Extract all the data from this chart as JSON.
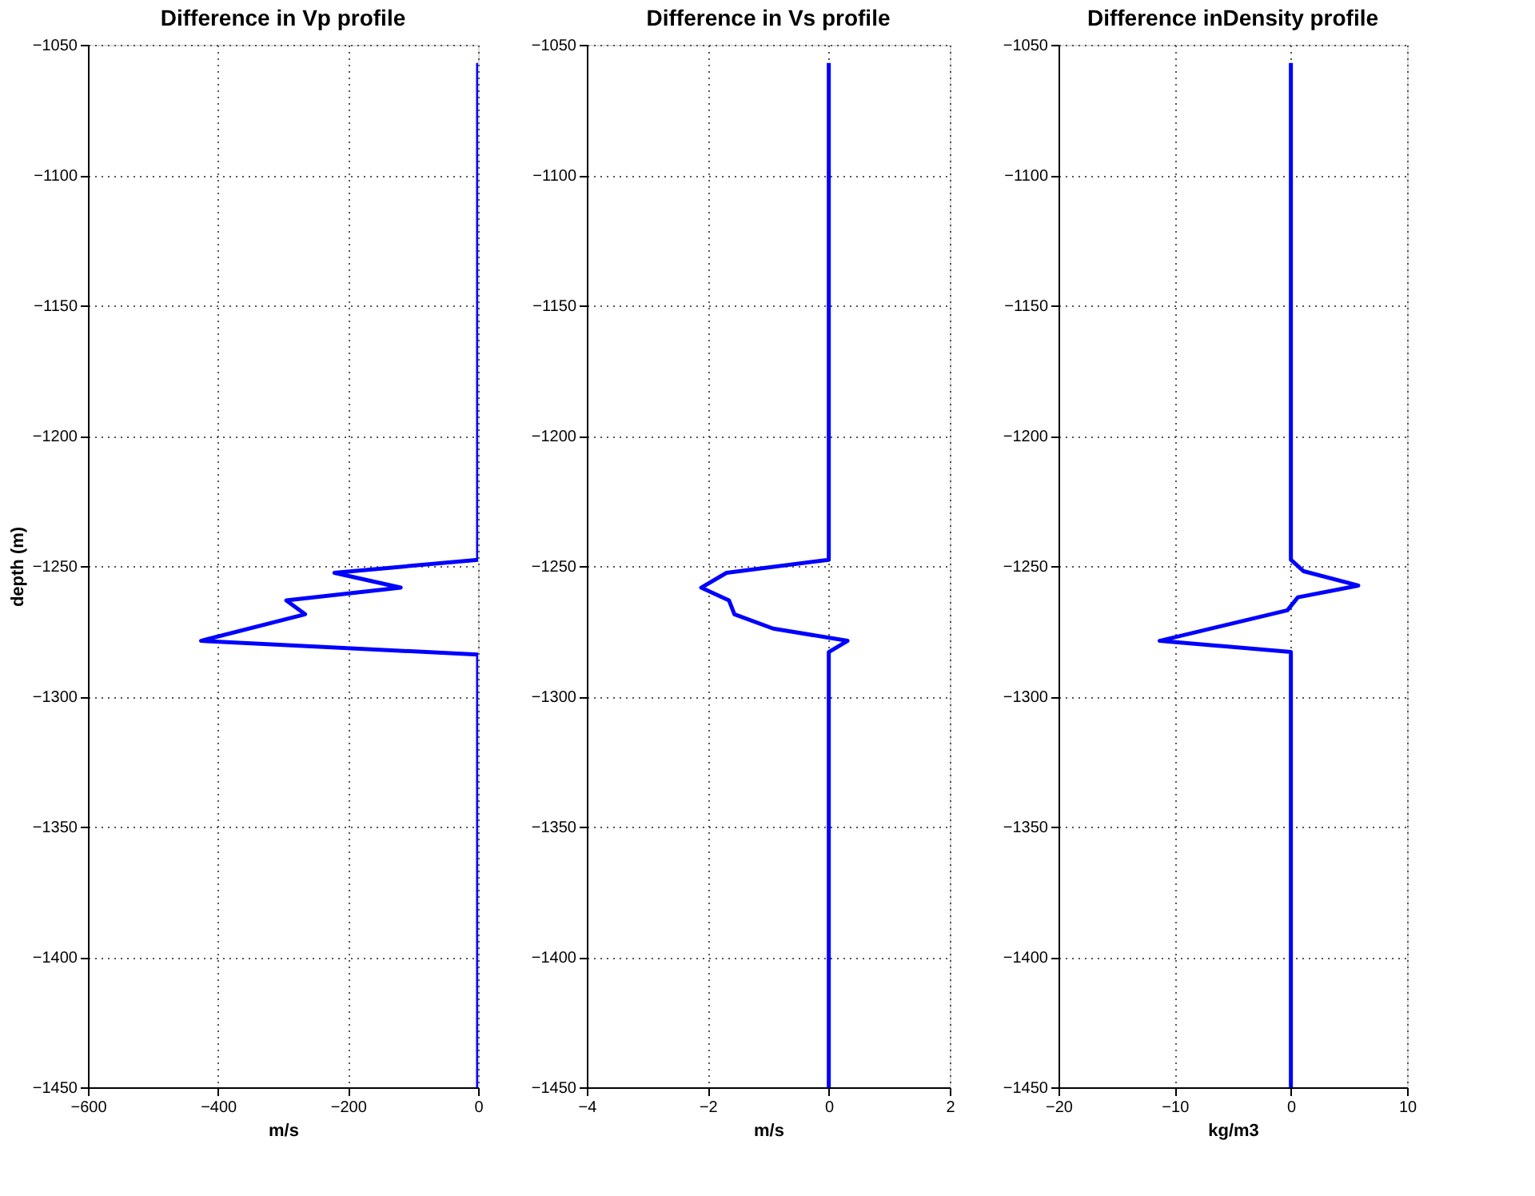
{
  "chart_data": [
    {
      "type": "line",
      "title": "Difference in Vp profile",
      "xlabel": "m/s",
      "ylabel": "depth (m)",
      "xlim": [
        -600,
        0
      ],
      "xticks": [
        -600,
        -400,
        -200,
        0
      ],
      "ylim": [
        -1450,
        -1050
      ],
      "yticks": [
        -1450,
        -1400,
        -1350,
        -1300,
        -1250,
        -1200,
        -1150,
        -1100,
        -1050
      ],
      "grid": true,
      "line_style": "solid",
      "marker": "none",
      "series": [
        {
          "color": "#0000ff",
          "x": [
            0,
            0,
            -221,
            -119,
            -295,
            -266,
            -426,
            0,
            0
          ],
          "values": [
            -1057,
            -1247.6,
            -1252.6,
            -1258.3,
            -1263.2,
            -1268.5,
            -1278.7,
            -1284,
            -1450
          ]
        }
      ]
    },
    {
      "type": "line",
      "title": "Difference in Vs profile",
      "xlabel": "m/s",
      "xlim": [
        -4,
        2
      ],
      "xticks": [
        -4,
        -2,
        0,
        2
      ],
      "ylim": [
        -1450,
        -1050
      ],
      "yticks": [
        -1450,
        -1400,
        -1350,
        -1300,
        -1250,
        -1200,
        -1150,
        -1100,
        -1050
      ],
      "grid": true,
      "line_style": "solid",
      "marker": "none",
      "series": [
        {
          "color": "#0000ff",
          "x": [
            0,
            0,
            -1.69,
            -2.11,
            -1.65,
            -1.56,
            -0.92,
            0.31,
            0,
            0
          ],
          "values": [
            -1057,
            -1247.6,
            -1252.6,
            -1258.3,
            -1263.2,
            -1268.5,
            -1274,
            -1278.7,
            -1283,
            -1450
          ]
        }
      ]
    },
    {
      "type": "line",
      "title": "Difference inDensity profile",
      "xlabel": "kg/m3",
      "xlim": [
        -20,
        10
      ],
      "xticks": [
        -20,
        -10,
        0,
        10
      ],
      "ylim": [
        -1450,
        -1050
      ],
      "yticks": [
        -1450,
        -1400,
        -1350,
        -1300,
        -1250,
        -1200,
        -1150,
        -1100,
        -1050
      ],
      "grid": true,
      "line_style": "solid",
      "marker": "none",
      "series": [
        {
          "color": "#0000ff",
          "x": [
            0,
            0,
            1.1,
            5.8,
            0.6,
            -0.3,
            -11.3,
            0,
            0
          ],
          "values": [
            -1057,
            -1247.6,
            -1252,
            -1257.5,
            -1262,
            -1267,
            -1278.7,
            -1283,
            -1450
          ]
        }
      ]
    }
  ]
}
